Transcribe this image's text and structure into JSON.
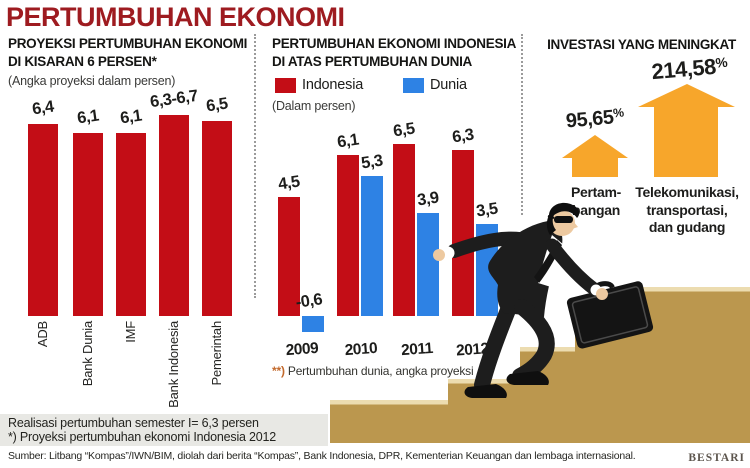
{
  "title": "PERTUMBUHAN EKONOMI",
  "panels": {
    "left": {
      "heading1": "PROYEKSI PERTUMBUHAN EKONOMI",
      "heading2": "DI KISARAN 6 PERSEN*",
      "subtitle": "(Angka proyeksi dalam persen)"
    },
    "middle": {
      "heading1": "PERTUMBUHAN EKONOMI INDONESIA",
      "heading2": "DI ATAS PERTUMBUHAN DUNIA",
      "subtitle": "(Dalam persen)",
      "footnote_mark": "**)",
      "footnote_text": "Pertumbuhan dunia, angka proyeksi"
    },
    "right": {
      "heading": "INVESTASI YANG MENINGKAT",
      "categories": [
        {
          "value_label": "95,65%",
          "lines": [
            "Pertam-",
            "bangan"
          ]
        },
        {
          "value_label": "214,58%",
          "lines": [
            "Telekomunikasi,",
            "transportasi,",
            "dan gudang"
          ]
        }
      ]
    }
  },
  "chart_data": [
    {
      "type": "bar",
      "title": "PROYEKSI PERTUMBUHAN EKONOMI DI KISARAN 6 PERSEN*",
      "subtitle": "(Angka proyeksi dalam persen)",
      "categories": [
        "ADB",
        "Bank Dunia",
        "IMF",
        "Bank Indonesia",
        "Pemerintah"
      ],
      "values": [
        6.4,
        6.1,
        6.1,
        [
          6.3,
          6.7
        ],
        6.5
      ],
      "value_labels": [
        "6,4",
        "6,1",
        "6,1",
        "6,3-6,7",
        "6,5"
      ],
      "bar_color": "#c30d16",
      "ylim": [
        0,
        7
      ],
      "grid": false
    },
    {
      "type": "bar",
      "title": "PERTUMBUHAN EKONOMI INDONESIA DI ATAS PERTUMBUHAN DUNIA",
      "subtitle": "(Dalam persen)",
      "categories": [
        "2009",
        "2010",
        "2011",
        "2012**"
      ],
      "series": [
        {
          "name": "Indonesia",
          "color": "#c30d16",
          "values": [
            4.5,
            6.1,
            6.5,
            6.3
          ],
          "value_labels": [
            "4,5",
            "6,1",
            "6,5",
            "6,3"
          ]
        },
        {
          "name": "Dunia",
          "color": "#2e82e4",
          "values": [
            -0.6,
            5.3,
            3.9,
            3.5
          ],
          "value_labels": [
            "-0,6",
            "5,3",
            "3,9",
            "3,5"
          ]
        }
      ],
      "legend_position": "top",
      "footnote": "**) Pertumbuhan dunia, angka proyeksi",
      "ylim": [
        -1,
        7
      ],
      "grid": false
    },
    {
      "type": "bar",
      "variant": "arrow-pictogram",
      "title": "INVESTASI YANG MENINGKAT",
      "categories": [
        "Pertambangan",
        "Telekomunikasi, transportasi, dan gudang"
      ],
      "values": [
        95.65,
        214.58
      ],
      "value_labels": [
        "95,65%",
        "214,58%"
      ],
      "unit": "%",
      "arrow_color": "#f7a62b"
    }
  ],
  "footer": {
    "note1": "Realisasi pertumbuhan semester I= 6,3 persen",
    "note2": "*) Proyeksi pertumbuhan ekonomi Indonesia 2012",
    "source": "Sumber: Litbang “Kompas”/IWN/BIM, diolah dari berita “Kompas”, Bank Indonesia, DPR, Kementerian Keuangan dan lembaga internasional.",
    "credit": "BESTARI"
  },
  "colors": {
    "title_red": "#9e1b20",
    "bar_red": "#c30d16",
    "bar_blue": "#2e82e4",
    "arrow_orange": "#f7a62b",
    "stairs_tan": "#bb974e",
    "stairs_highlight": "#ecdcb0",
    "note_bg": "#e8e8e4",
    "asterisk_orange": "#c36a2d"
  }
}
